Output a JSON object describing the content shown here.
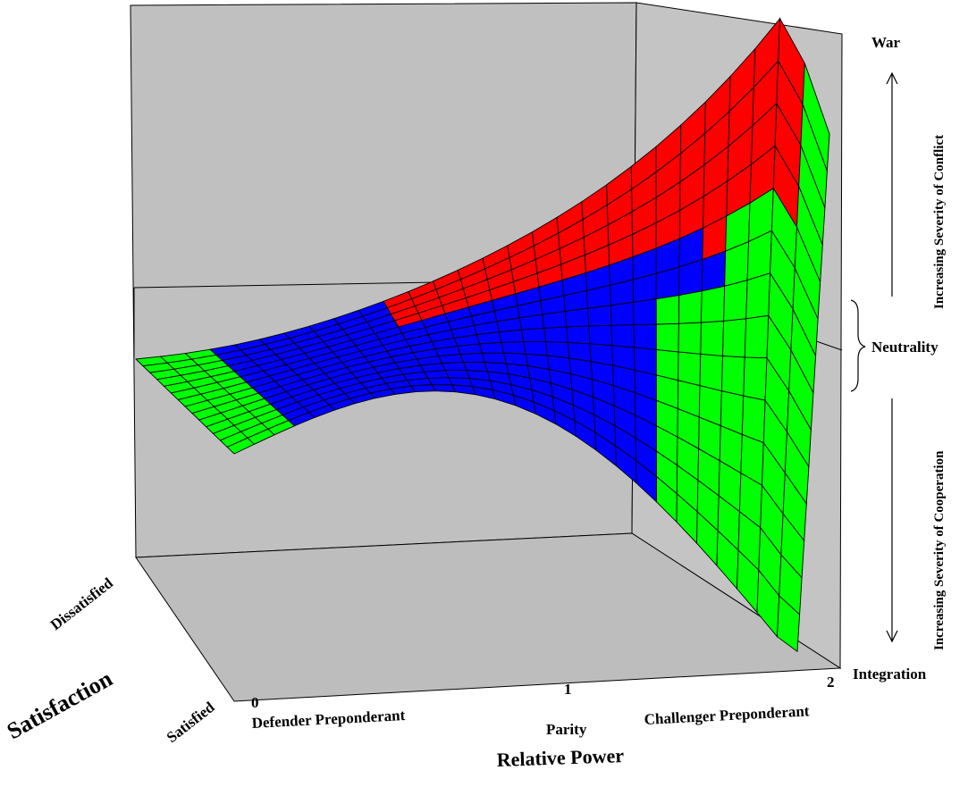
{
  "chart_data": {
    "type": "surface3d",
    "title": "",
    "x_axis": {
      "label": "Relative Power",
      "ticks": [
        {
          "value": 0,
          "number": "0",
          "caption": "Defender Preponderant"
        },
        {
          "value": 1,
          "number": "1",
          "caption": "Parity"
        },
        {
          "value": 2,
          "number": "2",
          "caption": "Challenger Preponderant"
        }
      ]
    },
    "y_axis": {
      "label": "Satisfaction",
      "ticks": [
        "Satisfied",
        "Dissatisfied"
      ]
    },
    "z_axis": {
      "top_label": "War",
      "middle_label": "Neutrality",
      "bottom_label": "Integration",
      "upper_arrow_label": "Increasing Severity of Conflict",
      "lower_arrow_label": "Increasing Severity of Cooperation"
    },
    "surface": {
      "description_regions": [
        {
          "name": "cooperation",
          "color": "#00ff00"
        },
        {
          "name": "neutrality",
          "color": "#0000ff"
        },
        {
          "name": "conflict",
          "color": "#ff0000"
        }
      ]
    },
    "colors": {
      "back_wall": "#c0c0c0",
      "side_wall": "#c4c4c4",
      "floor": "#bdbdbd",
      "cooperation": "#00ff00",
      "neutrality": "#0000ff",
      "conflict": "#ff0000"
    }
  }
}
